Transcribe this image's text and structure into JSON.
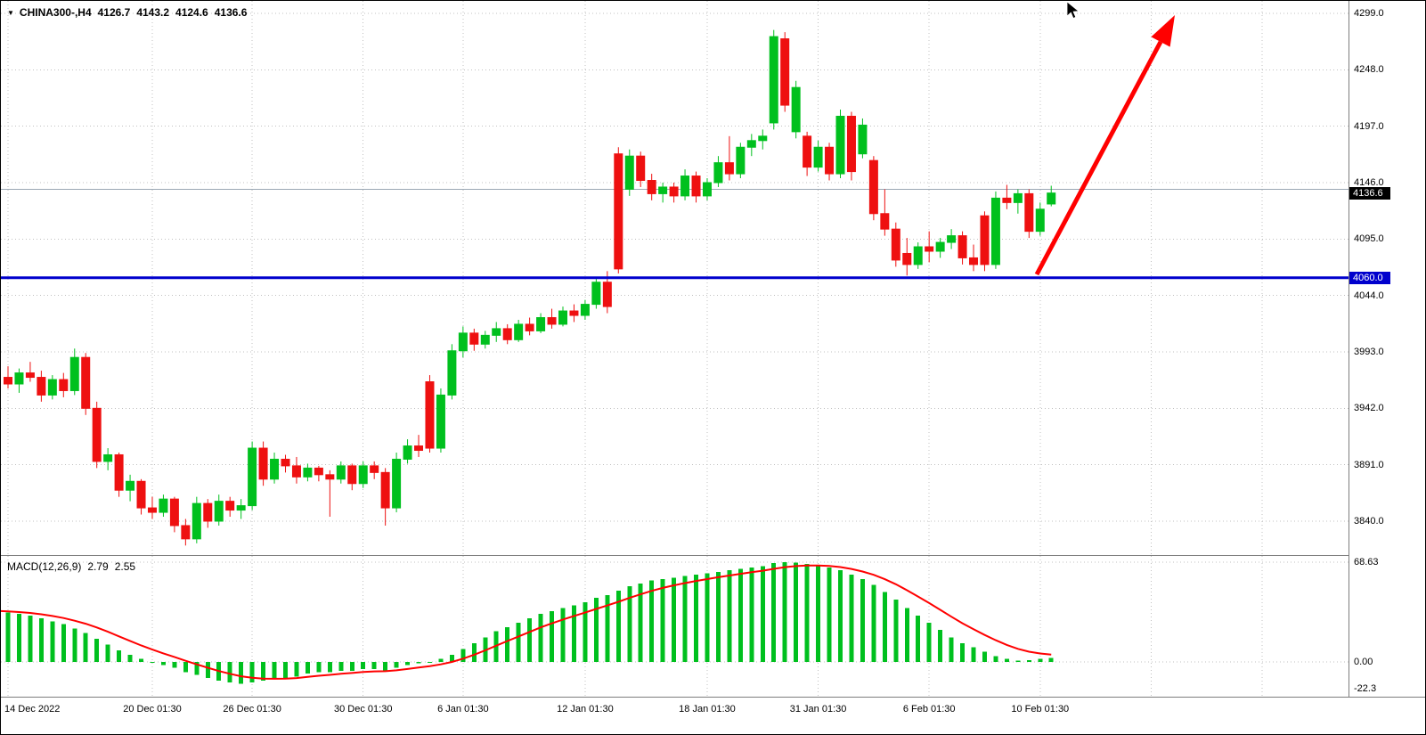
{
  "header": {
    "symbol": "CHINA300-,H4",
    "open": "4126.7",
    "high": "4143.2",
    "low": "4124.6",
    "close": "4136.6"
  },
  "macd_label": {
    "name": "MACD(12,26,9)",
    "main_value": "2.79",
    "signal_value": "2.55"
  },
  "chart_data": {
    "type": "candlestick",
    "symbol": "CHINA300-",
    "timeframe": "H4",
    "quote": {
      "open": 4126.7,
      "high": 4143.2,
      "low": 4124.6,
      "close": 4136.6
    },
    "price_axis": {
      "ticks": [
        4299,
        4248,
        4197,
        4146,
        4095,
        4044,
        3993,
        3942,
        3891,
        3840
      ],
      "current_price": 4136.6,
      "hline": 4060.0
    },
    "time_axis": [
      {
        "i": 0,
        "label": "14 Dec 2022"
      },
      {
        "i": 13,
        "label": "20 Dec 01:30"
      },
      {
        "i": 22,
        "label": "26 Dec 01:30"
      },
      {
        "i": 32,
        "label": "30 Dec 01:30"
      },
      {
        "i": 41,
        "label": "6 Jan 01:30"
      },
      {
        "i": 52,
        "label": "12 Jan 01:30"
      },
      {
        "i": 63,
        "label": "18 Jan 01:30"
      },
      {
        "i": 73,
        "label": "31 Jan 01:30"
      },
      {
        "i": 83,
        "label": "6 Feb 01:30"
      },
      {
        "i": 93,
        "label": "10 Feb 01:30"
      }
    ],
    "candles": [
      [
        3970,
        3980,
        3960,
        3964
      ],
      [
        3964,
        3978,
        3956,
        3974
      ],
      [
        3974,
        3984,
        3966,
        3970
      ],
      [
        3970,
        3976,
        3948,
        3954
      ],
      [
        3954,
        3972,
        3950,
        3968
      ],
      [
        3968,
        3974,
        3952,
        3958
      ],
      [
        3958,
        3996,
        3954,
        3988
      ],
      [
        3988,
        3992,
        3936,
        3942
      ],
      [
        3942,
        3948,
        3888,
        3894
      ],
      [
        3894,
        3906,
        3886,
        3900
      ],
      [
        3900,
        3902,
        3862,
        3868
      ],
      [
        3868,
        3882,
        3858,
        3876
      ],
      [
        3876,
        3878,
        3846,
        3852
      ],
      [
        3852,
        3862,
        3842,
        3848
      ],
      [
        3848,
        3864,
        3844,
        3860
      ],
      [
        3860,
        3862,
        3830,
        3836
      ],
      [
        3836,
        3842,
        3818,
        3824
      ],
      [
        3824,
        3862,
        3820,
        3856
      ],
      [
        3856,
        3860,
        3834,
        3840
      ],
      [
        3840,
        3864,
        3836,
        3858
      ],
      [
        3858,
        3862,
        3844,
        3850
      ],
      [
        3850,
        3860,
        3842,
        3854
      ],
      [
        3854,
        3912,
        3850,
        3906
      ],
      [
        3906,
        3912,
        3872,
        3878
      ],
      [
        3878,
        3902,
        3874,
        3896
      ],
      [
        3896,
        3900,
        3884,
        3890
      ],
      [
        3890,
        3898,
        3874,
        3880
      ],
      [
        3880,
        3892,
        3876,
        3888
      ],
      [
        3888,
        3890,
        3876,
        3882
      ],
      [
        3882,
        3886,
        3844,
        3878
      ],
      [
        3878,
        3894,
        3874,
        3890
      ],
      [
        3890,
        3892,
        3868,
        3874
      ],
      [
        3874,
        3894,
        3870,
        3890
      ],
      [
        3890,
        3894,
        3878,
        3884
      ],
      [
        3884,
        3888,
        3836,
        3852
      ],
      [
        3852,
        3902,
        3848,
        3896
      ],
      [
        3896,
        3914,
        3892,
        3908
      ],
      [
        3908,
        3918,
        3898,
        3904
      ],
      [
        3966,
        3972,
        3902,
        3906
      ],
      [
        3906,
        3960,
        3902,
        3954
      ],
      [
        3954,
        4000,
        3950,
        3994
      ],
      [
        3994,
        4016,
        3988,
        4010
      ],
      [
        4010,
        4014,
        3994,
        4000
      ],
      [
        4000,
        4012,
        3996,
        4008
      ],
      [
        4008,
        4020,
        4002,
        4014
      ],
      [
        4014,
        4018,
        4000,
        4004
      ],
      [
        4004,
        4022,
        4002,
        4018
      ],
      [
        4018,
        4024,
        4008,
        4012
      ],
      [
        4012,
        4028,
        4010,
        4024
      ],
      [
        4024,
        4032,
        4014,
        4018
      ],
      [
        4018,
        4034,
        4016,
        4030
      ],
      [
        4030,
        4036,
        4020,
        4026
      ],
      [
        4026,
        4040,
        4022,
        4036
      ],
      [
        4036,
        4060,
        4032,
        4056
      ],
      [
        4056,
        4066,
        4028,
        4034
      ],
      [
        4172,
        4178,
        4064,
        4068
      ],
      [
        4140,
        4176,
        4134,
        4170
      ],
      [
        4170,
        4174,
        4142,
        4148
      ],
      [
        4148,
        4154,
        4130,
        4136
      ],
      [
        4136,
        4146,
        4128,
        4142
      ],
      [
        4142,
        4146,
        4128,
        4134
      ],
      [
        4134,
        4158,
        4130,
        4152
      ],
      [
        4152,
        4156,
        4128,
        4134
      ],
      [
        4134,
        4150,
        4130,
        4146
      ],
      [
        4146,
        4170,
        4142,
        4164
      ],
      [
        4164,
        4188,
        4148,
        4154
      ],
      [
        4154,
        4182,
        4150,
        4178
      ],
      [
        4178,
        4190,
        4170,
        4184
      ],
      [
        4184,
        4194,
        4176,
        4188
      ],
      [
        4200,
        4284,
        4194,
        4278
      ],
      [
        4276,
        4282,
        4210,
        4216
      ],
      [
        4192,
        4238,
        4186,
        4232
      ],
      [
        4188,
        4192,
        4152,
        4160
      ],
      [
        4160,
        4184,
        4156,
        4178
      ],
      [
        4178,
        4182,
        4148,
        4154
      ],
      [
        4154,
        4212,
        4150,
        4206
      ],
      [
        4206,
        4210,
        4148,
        4156
      ],
      [
        4172,
        4204,
        4168,
        4198
      ],
      [
        4166,
        4170,
        4112,
        4118
      ],
      [
        4118,
        4140,
        4098,
        4104
      ],
      [
        4104,
        4110,
        4070,
        4076
      ],
      [
        4082,
        4096,
        4062,
        4072
      ],
      [
        4072,
        4092,
        4068,
        4088
      ],
      [
        4088,
        4102,
        4074,
        4084
      ],
      [
        4084,
        4096,
        4078,
        4092
      ],
      [
        4092,
        4104,
        4086,
        4098
      ],
      [
        4098,
        4102,
        4072,
        4078
      ],
      [
        4078,
        4090,
        4066,
        4072
      ],
      [
        4116,
        4120,
        4066,
        4072
      ],
      [
        4072,
        4138,
        4068,
        4132
      ],
      [
        4132,
        4144,
        4122,
        4128
      ],
      [
        4128,
        4140,
        4118,
        4136
      ],
      [
        4136,
        4140,
        4096,
        4102
      ],
      [
        4102,
        4128,
        4098,
        4122
      ],
      [
        4126.7,
        4143.2,
        4124.6,
        4136.6
      ]
    ],
    "macd": {
      "ticks": [
        {
          "value": 68.63,
          "label": "68.63"
        },
        {
          "value": 0,
          "label": "0.00"
        },
        {
          "value": -22.3,
          "label": "-22.3"
        }
      ],
      "histogram": [
        34,
        33,
        32,
        30,
        28,
        26,
        23,
        20,
        16,
        12,
        8,
        5,
        2,
        0,
        -2,
        -4,
        -7,
        -9,
        -11,
        -13,
        -14,
        -15,
        -14,
        -13,
        -12,
        -11,
        -10,
        -8,
        -7,
        -7,
        -6,
        -6,
        -5,
        -5,
        -6,
        -4,
        -2,
        -1,
        0,
        2,
        5,
        9,
        13,
        17,
        21,
        24,
        27,
        30,
        33,
        35,
        37,
        39,
        41,
        44,
        46,
        49,
        52,
        54,
        56,
        57,
        58,
        59,
        60,
        61,
        62,
        63,
        64,
        65,
        66,
        68,
        68.6,
        68.2,
        67.5,
        66.5,
        65,
        63,
        60,
        57,
        53,
        48,
        43,
        37,
        32,
        27,
        22,
        17,
        13,
        10,
        7,
        4,
        2,
        1,
        1.2,
        2,
        2.79
      ]
    },
    "colors": {
      "up": "#00c01e",
      "down": "#ee1010",
      "signal": "#ff0000",
      "hline": "#0000cd",
      "grid": "#c0c0c0",
      "bid_line": "#9aa7b4",
      "current_badge_bg": "#000000",
      "hline_badge_bg": "#0000cd",
      "arrow": "#ff0000"
    }
  }
}
